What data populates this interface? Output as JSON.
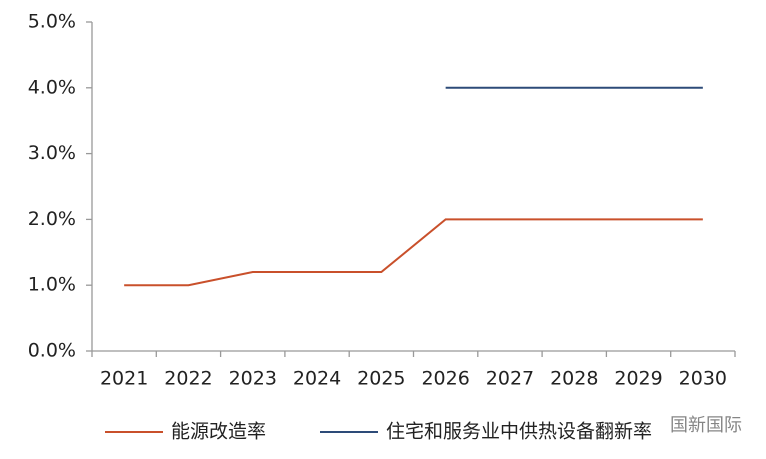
{
  "chart_data": {
    "type": "line",
    "categories": [
      "2021",
      "2022",
      "2023",
      "2024",
      "2025",
      "2026",
      "2027",
      "2028",
      "2029",
      "2030"
    ],
    "series": [
      {
        "name": "能源改造率",
        "color": "#c9502b",
        "values": [
          1.0,
          1.0,
          1.2,
          1.2,
          1.2,
          2.0,
          2.0,
          2.0,
          2.0,
          2.0
        ]
      },
      {
        "name": "住宅和服务业中供热设备翻新率",
        "color": "#2d4b78",
        "values": [
          null,
          null,
          null,
          null,
          null,
          4.0,
          4.0,
          4.0,
          4.0,
          4.0
        ]
      }
    ],
    "ylim": [
      0,
      5
    ],
    "yticks": [
      {
        "value": 0,
        "label": "0.0%"
      },
      {
        "value": 1,
        "label": "1.0%"
      },
      {
        "value": 2,
        "label": "2.0%"
      },
      {
        "value": 3,
        "label": "3.0%"
      },
      {
        "value": 4,
        "label": "4.0%"
      },
      {
        "value": 5,
        "label": "5.0%"
      }
    ],
    "grid": false,
    "legend": "bottom",
    "watermark": "国新国际"
  }
}
